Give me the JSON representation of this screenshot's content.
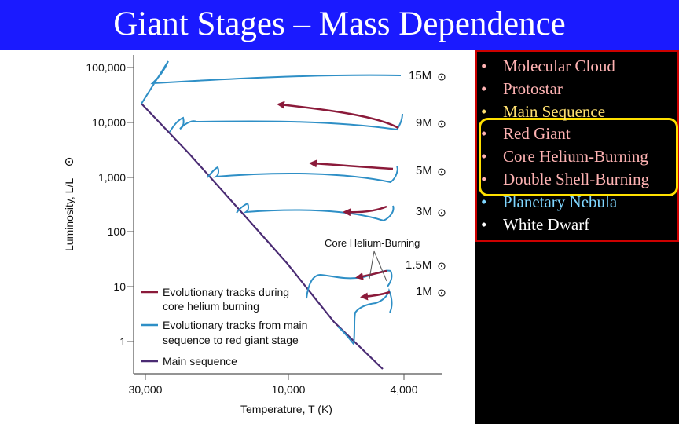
{
  "title": "Giant Stages – Mass Dependence",
  "diagram": {
    "y_axis_label": "Luminosity, L/L",
    "x_axis_label": "Temperature, T (K)",
    "y_ticks": [
      "100,000",
      "10,000",
      "1,000",
      "100",
      "10",
      "1"
    ],
    "x_ticks": [
      "30,000",
      "10,000",
      "4,000"
    ],
    "mass_labels": [
      "15M",
      "9M",
      "5M",
      "3M",
      "1.5M",
      "1M"
    ],
    "annotation": "Core Helium-Burning",
    "legend": [
      {
        "line1": "Evolutionary tracks during",
        "line2": "core helium burning",
        "color": "#8b1a3a"
      },
      {
        "line1": "Evolutionary tracks from main",
        "line2": "sequence to red giant stage",
        "color": "#2e8fc6"
      },
      {
        "line1": "Main sequence",
        "line2": "",
        "color": "#4a2b73"
      }
    ],
    "colors": {
      "helium": "#8b1a3a",
      "giant": "#2e8fc6",
      "main_sequence": "#4a2b73"
    }
  },
  "stages": [
    {
      "label": "Molecular Cloud",
      "color": "#ffb3b3"
    },
    {
      "label": "Protostar",
      "color": "#ffb3b3"
    },
    {
      "label": "Main Sequence",
      "color": "#ffe070"
    },
    {
      "label": "Red Giant",
      "color": "#ffb3b3"
    },
    {
      "label": "Core Helium-Burning",
      "color": "#ffb3b3"
    },
    {
      "label": "Double Shell-Burning",
      "color": "#ffb3b3"
    },
    {
      "label": "Planetary Nebula",
      "color": "#7fd6ff"
    },
    {
      "label": "White Dwarf",
      "color": "#ffffff"
    }
  ]
}
